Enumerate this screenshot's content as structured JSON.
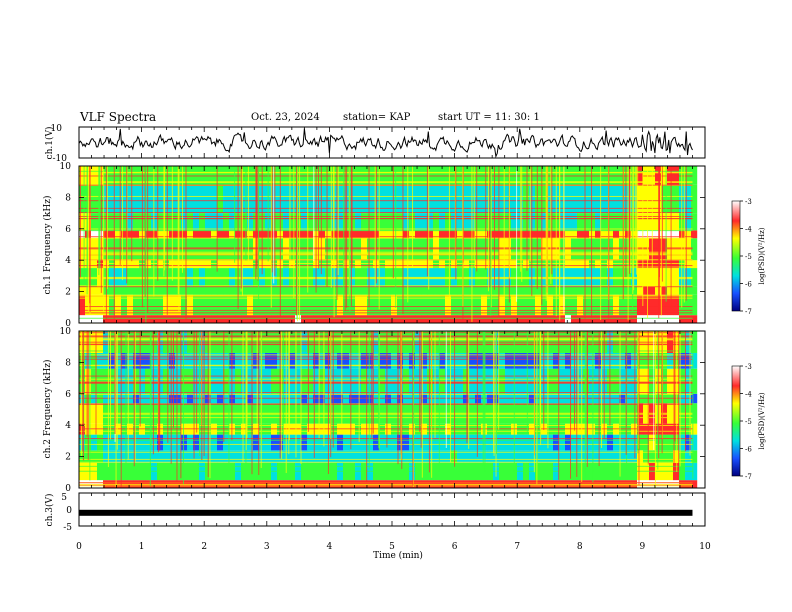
{
  "header": {
    "title": "VLF Spectra",
    "date": "Oct. 23, 2024",
    "station": "station= KAP",
    "start": "start UT =  11: 30: 1"
  },
  "colors": {
    "colormap": [
      "#ffffff",
      "#ff2a2a",
      "#ffff00",
      "#38ff38",
      "#00e0e0",
      "#1850ff",
      "#000080"
    ],
    "trace": "#000000"
  },
  "chart_data": [
    {
      "type": "line",
      "panel": "ch1-waveform",
      "ylabel": "ch.1(V)",
      "ylim": [
        -10,
        10
      ],
      "ytick_labels": [
        "10",
        "-10"
      ],
      "x_range_min": [
        0,
        9.8
      ],
      "grid": false,
      "description_values": {
        "mean": 0,
        "typical_amplitude": 4,
        "burst_at_min": 9.2
      }
    },
    {
      "type": "heatmap",
      "panel": "ch1-spectrogram",
      "ylabel": "ch.1 Frequency (kHz)",
      "ylim": [
        0,
        10
      ],
      "ytick_labels": [
        "0",
        "2",
        "4",
        "6",
        "8",
        "10"
      ],
      "colorbar": {
        "label": "log(PSD)(V²/Hz)",
        "range": [
          -7,
          -3
        ],
        "tick_labels": [
          "-3",
          "-4",
          "-5",
          "-6",
          "-7"
        ]
      },
      "bands_khz": [
        {
          "from": 0,
          "to": 0.5,
          "level": -3.6
        },
        {
          "from": 0.5,
          "to": 1.8,
          "level": -4.8
        },
        {
          "from": 1.8,
          "to": 2.3,
          "level": -5.0
        },
        {
          "from": 2.3,
          "to": 3.5,
          "level": -5.3
        },
        {
          "from": 3.5,
          "to": 4.0,
          "level": -4.6
        },
        {
          "from": 4.0,
          "to": 5.4,
          "level": -4.9
        },
        {
          "from": 5.4,
          "to": 5.9,
          "level": -3.9
        },
        {
          "from": 5.9,
          "to": 7.0,
          "level": -5.2
        },
        {
          "from": 7.0,
          "to": 8.8,
          "level": -5.6
        },
        {
          "from": 8.8,
          "to": 10.0,
          "level": -5.0
        }
      ]
    },
    {
      "type": "heatmap",
      "panel": "ch2-spectrogram",
      "ylabel": "ch.2 Frequency (kHz)",
      "ylim": [
        0,
        10
      ],
      "ytick_labels": [
        "0",
        "2",
        "4",
        "6",
        "8",
        "10"
      ],
      "colorbar": {
        "label": "log(PSD)(V²/Hz)",
        "range": [
          -7,
          -3
        ],
        "tick_labels": [
          "-3",
          "-4",
          "-5",
          "-6",
          "-7"
        ]
      },
      "bands_khz": [
        {
          "from": 0,
          "to": 0.5,
          "level": -3.7
        },
        {
          "from": 0.5,
          "to": 1.6,
          "level": -5.1
        },
        {
          "from": 1.6,
          "to": 2.4,
          "level": -5.6
        },
        {
          "from": 2.4,
          "to": 3.4,
          "level": -5.8
        },
        {
          "from": 3.4,
          "to": 4.1,
          "level": -4.7
        },
        {
          "from": 4.1,
          "to": 5.4,
          "level": -5.0
        },
        {
          "from": 5.4,
          "to": 6.0,
          "level": -5.9
        },
        {
          "from": 6.0,
          "to": 7.6,
          "level": -5.5
        },
        {
          "from": 7.6,
          "to": 8.6,
          "level": -6.0
        },
        {
          "from": 8.6,
          "to": 10.0,
          "level": -5.1
        }
      ]
    },
    {
      "type": "line",
      "panel": "ch3-waveform",
      "ylabel": "ch.3(V)",
      "ylim": [
        -5,
        5
      ],
      "ytick_labels": [
        "5",
        "0",
        "-5"
      ],
      "value": -1,
      "x_range_min": [
        0,
        9.8
      ]
    }
  ],
  "xaxis": {
    "label": "Time (min)",
    "range": [
      0,
      10
    ],
    "tick_labels": [
      "0",
      "1",
      "2",
      "3",
      "4",
      "5",
      "6",
      "7",
      "8",
      "9",
      "10"
    ]
  }
}
